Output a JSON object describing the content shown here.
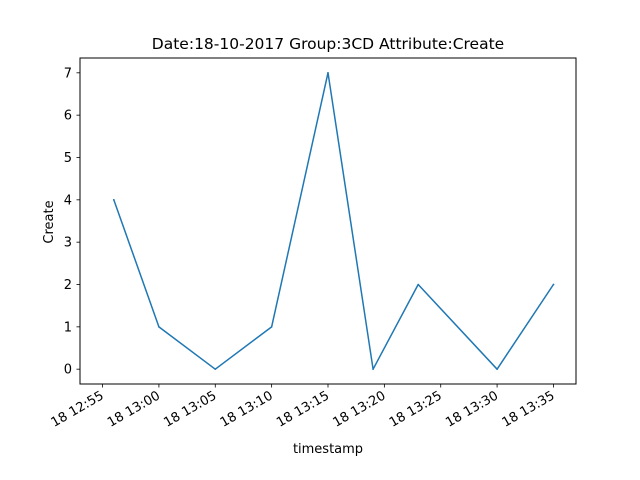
{
  "chart_data": {
    "type": "line",
    "title": "Date:18-10-2017  Group:3CD Attribute:Create",
    "xlabel": "timestamp",
    "ylabel": "Create",
    "x": [
      "12:56",
      "13:00",
      "13:05",
      "13:10",
      "13:15",
      "13:19",
      "13:23",
      "13:30",
      "13:35"
    ],
    "series": [
      {
        "values": [
          4,
          1,
          0,
          1,
          7,
          0,
          2,
          0,
          2
        ],
        "color": "#1f77b4"
      }
    ],
    "x_ticks": [
      {
        "time": "12:55",
        "label": "18 12:55"
      },
      {
        "time": "13:00",
        "label": "18 13:00"
      },
      {
        "time": "13:05",
        "label": "18 13:05"
      },
      {
        "time": "13:10",
        "label": "18 13:10"
      },
      {
        "time": "13:15",
        "label": "18 13:15"
      },
      {
        "time": "13:20",
        "label": "18 13:20"
      },
      {
        "time": "13:25",
        "label": "18 13:25"
      },
      {
        "time": "13:30",
        "label": "18 13:30"
      },
      {
        "time": "13:35",
        "label": "18 13:35"
      }
    ],
    "y_ticks": [
      0,
      1,
      2,
      3,
      4,
      5,
      6,
      7
    ],
    "xlim": [
      "12:53",
      "13:37"
    ],
    "ylim": [
      -0.35,
      7.35
    ],
    "grid": false,
    "legend": "none"
  }
}
